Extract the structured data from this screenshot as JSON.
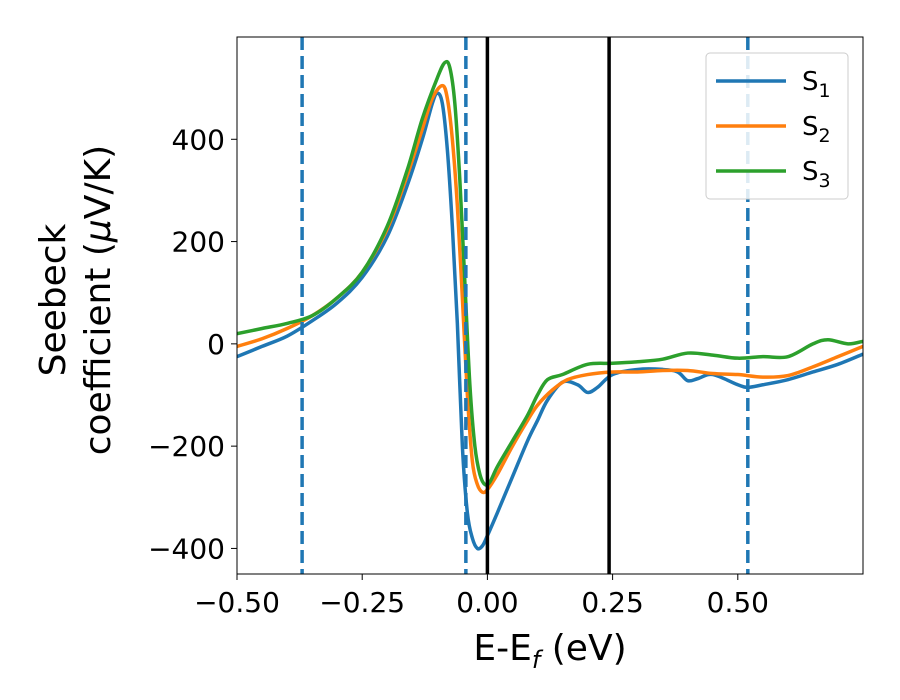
{
  "chart_data": {
    "type": "line",
    "xlabel": "E-E",
    "xlabel_sub": "f",
    "xlabel_unit": " (eV)",
    "ylabel_line1": "Seebeck",
    "ylabel_line2_a": "coefficient  (",
    "ylabel_mu": "μ",
    "ylabel_line2_b": "V/K)",
    "xlim": [
      -0.5,
      0.75
    ],
    "ylim": [
      -450,
      600
    ],
    "xticks": [
      -0.5,
      -0.25,
      0.0,
      0.25,
      0.5
    ],
    "xtick_labels": [
      "−0.50",
      "−0.25",
      "0.00",
      "0.25",
      "0.50"
    ],
    "yticks": [
      -400,
      -200,
      0,
      200,
      400
    ],
    "ytick_labels": [
      "−400",
      "−200",
      "0",
      "200",
      "400"
    ],
    "legend_position": "upper right",
    "vlines_dashed": {
      "x": [
        -0.37,
        -0.043,
        0.52
      ],
      "color": "#1f77b4"
    },
    "vlines_solid": {
      "x": [
        0.0,
        0.243
      ],
      "color": "#000000"
    },
    "series": [
      {
        "name": "S",
        "sub": "1",
        "color": "#1f77b4",
        "points": [
          [
            -0.5,
            -25
          ],
          [
            -0.45,
            -5
          ],
          [
            -0.4,
            15
          ],
          [
            -0.35,
            45
          ],
          [
            -0.3,
            80
          ],
          [
            -0.25,
            130
          ],
          [
            -0.2,
            210
          ],
          [
            -0.16,
            310
          ],
          [
            -0.13,
            400
          ],
          [
            -0.11,
            470
          ],
          [
            -0.1,
            490
          ],
          [
            -0.09,
            470
          ],
          [
            -0.08,
            380
          ],
          [
            -0.07,
            230
          ],
          [
            -0.06,
            40
          ],
          [
            -0.05,
            -200
          ],
          [
            -0.04,
            -330
          ],
          [
            -0.03,
            -380
          ],
          [
            -0.02,
            -400
          ],
          [
            -0.01,
            -395
          ],
          [
            0.0,
            -375
          ],
          [
            0.02,
            -330
          ],
          [
            0.05,
            -260
          ],
          [
            0.08,
            -190
          ],
          [
            0.1,
            -150
          ],
          [
            0.12,
            -110
          ],
          [
            0.15,
            -75
          ],
          [
            0.18,
            -80
          ],
          [
            0.2,
            -95
          ],
          [
            0.22,
            -85
          ],
          [
            0.25,
            -60
          ],
          [
            0.3,
            -50
          ],
          [
            0.35,
            -50
          ],
          [
            0.38,
            -55
          ],
          [
            0.4,
            -72
          ],
          [
            0.42,
            -68
          ],
          [
            0.45,
            -60
          ],
          [
            0.5,
            -80
          ],
          [
            0.52,
            -85
          ],
          [
            0.55,
            -80
          ],
          [
            0.6,
            -70
          ],
          [
            0.65,
            -55
          ],
          [
            0.7,
            -40
          ],
          [
            0.75,
            -20
          ]
        ]
      },
      {
        "name": "S",
        "sub": "2",
        "color": "#ff7f0e",
        "points": [
          [
            -0.5,
            -5
          ],
          [
            -0.45,
            10
          ],
          [
            -0.4,
            30
          ],
          [
            -0.35,
            55
          ],
          [
            -0.3,
            90
          ],
          [
            -0.25,
            140
          ],
          [
            -0.2,
            225
          ],
          [
            -0.16,
            330
          ],
          [
            -0.13,
            420
          ],
          [
            -0.11,
            480
          ],
          [
            -0.09,
            505
          ],
          [
            -0.08,
            480
          ],
          [
            -0.07,
            400
          ],
          [
            -0.06,
            270
          ],
          [
            -0.05,
            90
          ],
          [
            -0.04,
            -100
          ],
          [
            -0.03,
            -230
          ],
          [
            -0.02,
            -275
          ],
          [
            -0.01,
            -290
          ],
          [
            0.0,
            -285
          ],
          [
            0.02,
            -255
          ],
          [
            0.05,
            -200
          ],
          [
            0.08,
            -150
          ],
          [
            0.1,
            -120
          ],
          [
            0.13,
            -90
          ],
          [
            0.16,
            -70
          ],
          [
            0.2,
            -60
          ],
          [
            0.25,
            -55
          ],
          [
            0.3,
            -55
          ],
          [
            0.35,
            -52
          ],
          [
            0.4,
            -52
          ],
          [
            0.45,
            -58
          ],
          [
            0.5,
            -60
          ],
          [
            0.55,
            -65
          ],
          [
            0.6,
            -62
          ],
          [
            0.65,
            -45
          ],
          [
            0.7,
            -25
          ],
          [
            0.75,
            -5
          ]
        ]
      },
      {
        "name": "S",
        "sub": "3",
        "color": "#2ca02c",
        "points": [
          [
            -0.5,
            20
          ],
          [
            -0.45,
            30
          ],
          [
            -0.4,
            40
          ],
          [
            -0.35,
            55
          ],
          [
            -0.3,
            90
          ],
          [
            -0.25,
            140
          ],
          [
            -0.2,
            230
          ],
          [
            -0.16,
            340
          ],
          [
            -0.13,
            440
          ],
          [
            -0.1,
            520
          ],
          [
            -0.085,
            550
          ],
          [
            -0.075,
            540
          ],
          [
            -0.065,
            470
          ],
          [
            -0.055,
            320
          ],
          [
            -0.045,
            120
          ],
          [
            -0.035,
            -80
          ],
          [
            -0.025,
            -200
          ],
          [
            -0.015,
            -255
          ],
          [
            -0.005,
            -275
          ],
          [
            0.005,
            -270
          ],
          [
            0.02,
            -240
          ],
          [
            0.05,
            -190
          ],
          [
            0.08,
            -140
          ],
          [
            0.1,
            -100
          ],
          [
            0.12,
            -70
          ],
          [
            0.15,
            -60
          ],
          [
            0.2,
            -40
          ],
          [
            0.25,
            -38
          ],
          [
            0.3,
            -35
          ],
          [
            0.35,
            -30
          ],
          [
            0.4,
            -18
          ],
          [
            0.45,
            -22
          ],
          [
            0.5,
            -28
          ],
          [
            0.55,
            -25
          ],
          [
            0.6,
            -25
          ],
          [
            0.65,
            0
          ],
          [
            0.68,
            8
          ],
          [
            0.72,
            0
          ],
          [
            0.75,
            5
          ]
        ]
      }
    ]
  }
}
